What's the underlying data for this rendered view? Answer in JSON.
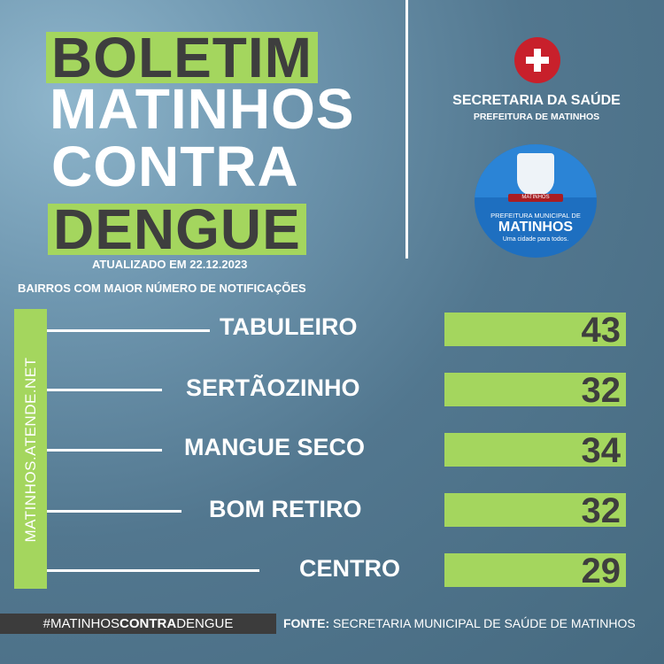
{
  "title": {
    "line1": "BOLETIM",
    "line2": "MATINHOS",
    "line3": "CONTRA",
    "line4": "DENGUE"
  },
  "updated": "ATUALIZADO EM 22.12.2023",
  "subtitle": "BAIRROS COM MAIOR NÚMERO DE NOTIFICAÇÕES",
  "secretaria": {
    "title": "SECRETARIA DA SAÚDE",
    "subtitle": "PREFEITURA DE MATINHOS"
  },
  "badge": {
    "crest_ribbon": "MATINHOS",
    "prefeitura": "PREFEITURA MUNICIPAL DE",
    "name": "MATINHOS",
    "slogan": "Uma cidade para todos."
  },
  "website": "MATINHOS.ATENDE.NET",
  "neighborhoods": [
    {
      "name": "TABULEIRO",
      "value": "43"
    },
    {
      "name": "SERTÃOZINHO",
      "value": "32"
    },
    {
      "name": "MANGUE SECO",
      "value": "34"
    },
    {
      "name": "BOM RETIRO",
      "value": "32"
    },
    {
      "name": "CENTRO",
      "value": "29"
    }
  ],
  "footer": {
    "hashtag_pre": "#MATINHOS",
    "hashtag_bold": "CONTRA",
    "hashtag_post": "DENGUE",
    "source_label": "FONTE:",
    "source_text": " SECRETARIA MUNICIPAL DE SAÚDE DE MATINHOS"
  },
  "colors": {
    "accent_green": "#a4d65e",
    "dark_text": "#3e3e3e",
    "background": "#52778f",
    "cross_red": "#c8202b"
  }
}
